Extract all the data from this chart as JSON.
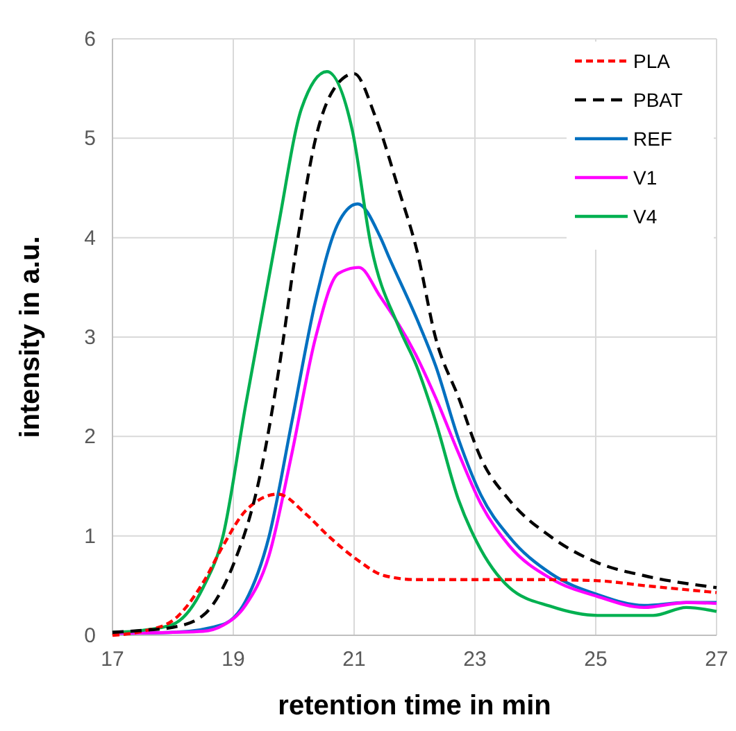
{
  "chart_data": {
    "type": "line",
    "xlabel": "retention time in min",
    "ylabel": "intensity in a.u.",
    "xlim": [
      17,
      27
    ],
    "xticks": [
      17,
      19,
      21,
      23,
      25,
      27
    ],
    "ylim": [
      0,
      6
    ],
    "yticks": [
      0,
      1,
      2,
      3,
      4,
      5,
      6
    ],
    "grid": true,
    "legend": "top right",
    "marker": "none",
    "series": [
      {
        "name": "PLA",
        "color": "#ff0000",
        "line_style": "dashed",
        "x": [
          17,
          17.5,
          18,
          18.5,
          18.83,
          19.2,
          19.74,
          20.2,
          20.59,
          21.05,
          21.5,
          22.04,
          23,
          24,
          25,
          25.8,
          27
        ],
        "values": [
          0,
          0.04,
          0.15,
          0.53,
          0.9,
          1.25,
          1.42,
          1.22,
          0.99,
          0.76,
          0.6,
          0.56,
          0.56,
          0.56,
          0.55,
          0.5,
          0.43
        ]
      },
      {
        "name": "PBAT",
        "color": "#000000",
        "line_style": "dashed",
        "x": [
          17,
          17.5,
          18,
          18.5,
          18.83,
          19,
          19.44,
          19.74,
          20.05,
          20.36,
          20.67,
          21,
          21.35,
          21.74,
          22.04,
          22.35,
          22.73,
          23.1,
          23.57,
          24.26,
          25.03,
          25.8,
          27
        ],
        "values": [
          0.03,
          0.05,
          0.08,
          0.2,
          0.48,
          0.71,
          1.6,
          2.62,
          3.92,
          4.99,
          5.5,
          5.65,
          5.22,
          4.48,
          3.87,
          2.99,
          2.39,
          1.78,
          1.36,
          0.99,
          0.73,
          0.6,
          0.48
        ]
      },
      {
        "name": "REF",
        "color": "#0070c0",
        "line_style": "solid",
        "x": [
          17,
          18,
          18.83,
          19.2,
          19.59,
          19.97,
          20.36,
          20.74,
          21.06,
          21.43,
          21.58,
          22.04,
          22.35,
          22.73,
          23.1,
          23.57,
          24.26,
          25.03,
          25.8,
          26.5,
          27
        ],
        "values": [
          0.02,
          0.03,
          0.11,
          0.34,
          0.99,
          2.15,
          3.36,
          4.15,
          4.34,
          4.01,
          3.8,
          3.18,
          2.71,
          1.97,
          1.41,
          0.99,
          0.62,
          0.41,
          0.3,
          0.33,
          0.33
        ]
      },
      {
        "name": "V1",
        "color": "#ff00ff",
        "line_style": "solid",
        "x": [
          17,
          18,
          18.5,
          18.83,
          19.2,
          19.59,
          19.97,
          20.36,
          20.74,
          21.08,
          21.43,
          22.04,
          22.35,
          22.73,
          23.1,
          23.57,
          24.26,
          25.03,
          25.8,
          26.5,
          27
        ],
        "values": [
          0.02,
          0.03,
          0.04,
          0.1,
          0.3,
          0.8,
          1.83,
          2.99,
          3.64,
          3.7,
          3.41,
          2.8,
          2.39,
          1.83,
          1.32,
          0.9,
          0.57,
          0.39,
          0.28,
          0.33,
          0.32
        ]
      },
      {
        "name": "V4",
        "color": "#00b050",
        "line_style": "solid",
        "x": [
          17,
          17.5,
          18,
          18.5,
          18.83,
          19.2,
          19.74,
          20.13,
          20.55,
          20.97,
          21.28,
          21.74,
          22.04,
          22.35,
          22.73,
          23.03,
          23.57,
          24.26,
          25.03,
          25.95,
          26.5,
          27
        ],
        "values": [
          0.03,
          0.05,
          0.11,
          0.48,
          1.0,
          2.3,
          4.1,
          5.3,
          5.67,
          5.08,
          3.92,
          3.1,
          2.7,
          2.15,
          1.36,
          0.94,
          0.48,
          0.29,
          0.2,
          0.2,
          0.28,
          0.24
        ]
      }
    ]
  }
}
